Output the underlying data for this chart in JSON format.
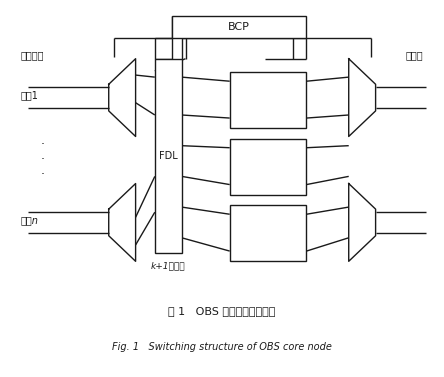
{
  "fig_width": 4.44,
  "fig_height": 3.77,
  "dpi": 100,
  "bg_color": "#ffffff",
  "line_color": "#1a1a1a",
  "line_width": 1.0,
  "title_cn": "图 1   OBS 核心节点交换结构",
  "title_en": "Fig. 1   Switching structure of OBS core node",
  "label_demux": "解复用器",
  "label_mux": "复用器",
  "label_fiber1": "光纤1",
  "label_fibern": "光纤n",
  "label_fdl": "FDL",
  "label_bcp": "BCP",
  "label_wavelength": "k+1个波长"
}
